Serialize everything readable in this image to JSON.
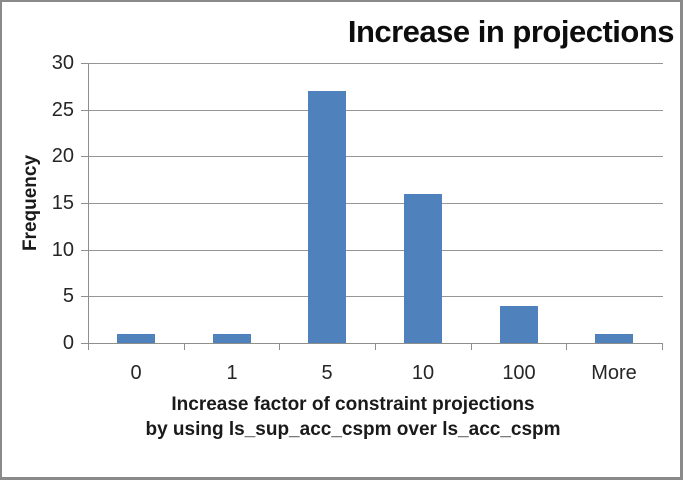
{
  "chart_data": {
    "type": "bar",
    "title": "Increase in projections",
    "categories": [
      "0",
      "1",
      "5",
      "10",
      "100",
      "More"
    ],
    "series": [
      {
        "name": "Frequency",
        "values": [
          1,
          1,
          27,
          16,
          4,
          1
        ]
      }
    ],
    "xlabel": "Increase factor of constraint projections by using ls_sup_acc_cspm over ls_acc_cspm",
    "xlabel_lines": [
      "Increase factor of constraint projections",
      "by using ls_sup_acc_cspm over ls_acc_cspm"
    ],
    "ylabel": "Frequency",
    "ylim": [
      0,
      30
    ],
    "yticks": [
      0,
      5,
      10,
      15,
      20,
      25,
      30
    ],
    "grid": true,
    "legend": "none",
    "colors": {
      "bar": "#4F81BD",
      "gridline": "#969696",
      "axis": "#8E8E8E",
      "tick_label_text": "#262626",
      "axis_title_text": "#1A1A1A",
      "title_text": "#0D0D0D",
      "frame_border": "#8A8A8A",
      "background": "#FFFFFF"
    }
  }
}
